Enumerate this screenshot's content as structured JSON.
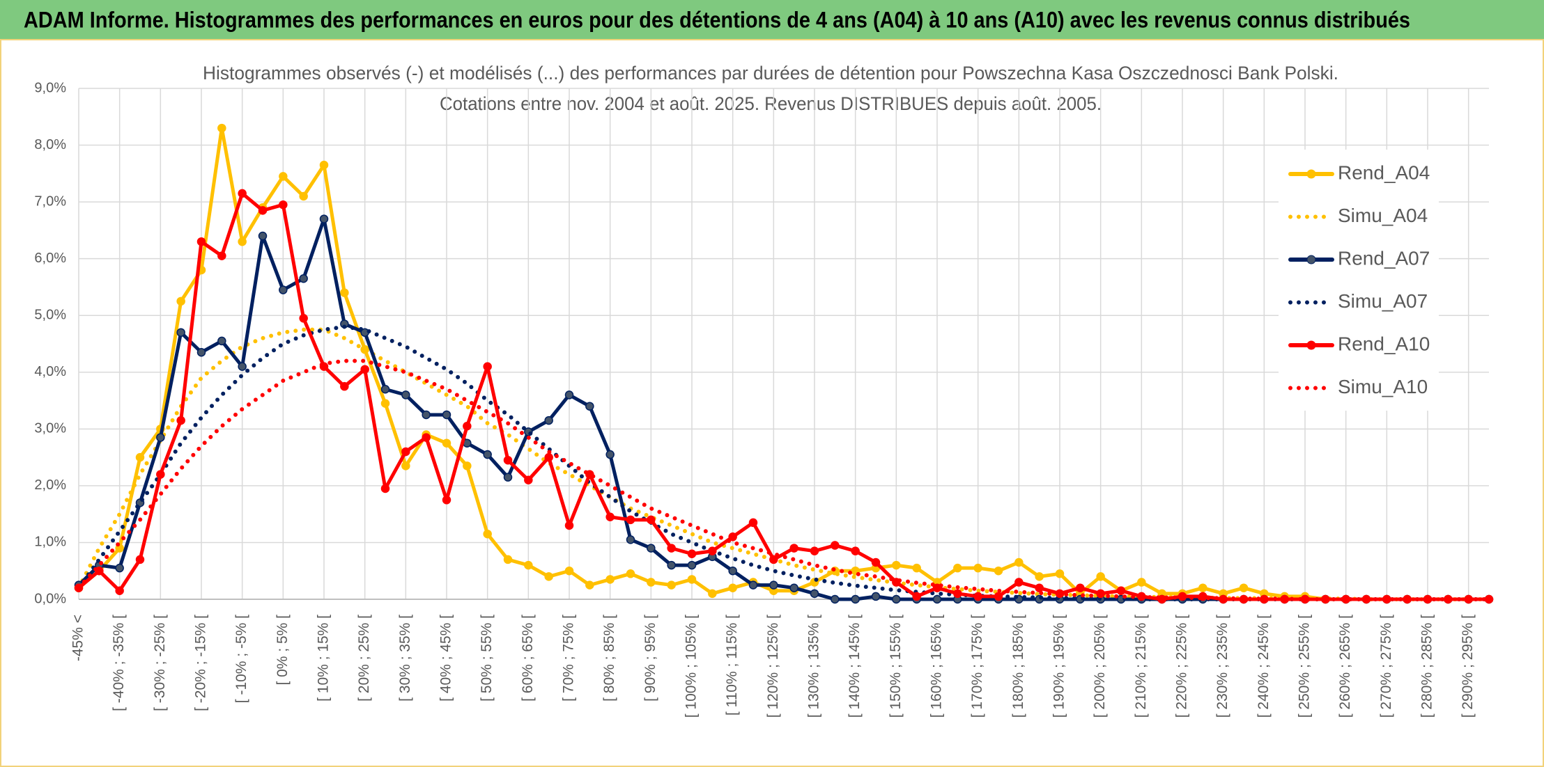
{
  "chart_data": {
    "type": "line",
    "title": "ADAM Informe. Histogrammes des performances en euros pour des détentions de 4 ans (A04) à 10 ans (A10) avec les revenus connus distribués",
    "subtitle": [
      "Histogrammes observés (-) et modélisés (...) des performances par durées de détention pour Powszechna Kasa Oszczednosci Bank Polski.",
      "Cotations entre nov. 2004 et août. 2025. Revenus DISTRIBUES depuis août. 2005."
    ],
    "categories": [
      "-45% <",
      null,
      "[ -40% ; -35% [",
      null,
      "[ -30% ; -25% [",
      null,
      "[ -20% ; -15% [",
      null,
      "[ -10% ; -5% [",
      null,
      "[ 0% ; 5% [",
      null,
      "[ 10% ; 15% [",
      null,
      "[ 20% ; 25% [",
      null,
      "[ 30% ; 35% [",
      null,
      "[ 40% ; 45% [",
      null,
      "[ 50% ; 55% [",
      null,
      "[ 60% ; 65% [",
      null,
      "[ 70% ; 75% [",
      null,
      "[ 80% ; 85% [",
      null,
      "[ 90% ; 95% [",
      null,
      "[ 100% ; 105% [",
      null,
      "[ 110% ; 115% [",
      null,
      "[ 120% ; 125% [",
      null,
      "[ 130% ; 135% [",
      null,
      "[ 140% ; 145% [",
      null,
      "[ 150% ; 155% [",
      null,
      "[ 160% ; 165% [",
      null,
      "[ 170% ; 175% [",
      null,
      "[ 180% ; 185% [",
      null,
      "[ 190% ; 195% [",
      null,
      "[ 200% ; 205% [",
      null,
      "[ 210% ; 215% [",
      null,
      "[ 220% ; 225% [",
      null,
      "[ 230% ; 235% [",
      null,
      "[ 240% ; 245% [",
      null,
      "[ 250% ; 255% [",
      null,
      "[ 260% ; 265% [",
      null,
      "[ 270% ; 275% [",
      null,
      "[ 280% ; 285% [",
      null,
      "[ 290% ; 295% [",
      null
    ],
    "series": [
      {
        "name": "Rend_A04",
        "color": "#FFC000",
        "style": "solid",
        "values": [
          0.2,
          0.5,
          0.9,
          2.5,
          3.0,
          5.25,
          5.8,
          8.3,
          6.3,
          6.9,
          7.45,
          7.1,
          7.65,
          5.4,
          4.4,
          3.45,
          2.35,
          2.9,
          2.75,
          2.35,
          1.15,
          0.7,
          0.6,
          0.4,
          0.5,
          0.25,
          0.35,
          0.45,
          0.3,
          0.25,
          0.35,
          0.1,
          0.2,
          0.3,
          0.15,
          0.15,
          0.3,
          0.5,
          0.5,
          0.55,
          0.6,
          0.55,
          0.3,
          0.55,
          0.55,
          0.5,
          0.65,
          0.4,
          0.45,
          0.1,
          0.4,
          0.15,
          0.3,
          0.1,
          0.1,
          0.2,
          0.1,
          0.2,
          0.1,
          0.05,
          0.05,
          0,
          0,
          0,
          0,
          0,
          0,
          0,
          0,
          0
        ]
      },
      {
        "name": "Simu_A04",
        "color": "#FFC000",
        "style": "dotted",
        "values": [
          0.2,
          0.9,
          1.5,
          2.2,
          2.8,
          3.4,
          3.9,
          4.2,
          4.45,
          4.6,
          4.7,
          4.75,
          4.75,
          4.6,
          4.4,
          4.2,
          4.0,
          3.8,
          3.6,
          3.4,
          3.1,
          2.9,
          2.65,
          2.4,
          2.2,
          2.0,
          1.8,
          1.6,
          1.45,
          1.3,
          1.15,
          1.0,
          0.9,
          0.8,
          0.7,
          0.6,
          0.52,
          0.45,
          0.39,
          0.34,
          0.29,
          0.25,
          0.21,
          0.18,
          0.15,
          0.13,
          0.11,
          0.09,
          0.08,
          0.07,
          0.06,
          0.05,
          0.04,
          0.04,
          0.03,
          0.03,
          0.02,
          0.02,
          0.02,
          0.01,
          0.01,
          0.01,
          0.01,
          0,
          0,
          0,
          0,
          0,
          0,
          0
        ]
      },
      {
        "name": "Rend_A07",
        "color": "#002060",
        "style": "solid",
        "values": [
          0.25,
          0.6,
          0.55,
          1.7,
          2.85,
          4.7,
          4.35,
          4.55,
          4.1,
          6.4,
          5.45,
          5.65,
          6.7,
          4.85,
          4.7,
          3.7,
          3.6,
          3.25,
          3.25,
          2.75,
          2.55,
          2.15,
          2.95,
          3.15,
          3.6,
          3.4,
          2.55,
          1.05,
          0.9,
          0.6,
          0.6,
          0.75,
          0.5,
          0.25,
          0.25,
          0.2,
          0.1,
          0,
          0,
          0.05,
          0,
          0,
          0,
          0,
          0,
          0,
          0,
          0,
          0,
          0,
          0,
          0,
          0,
          0,
          0,
          0,
          0,
          0,
          0,
          0,
          0,
          0,
          0,
          0,
          0,
          0,
          0,
          0,
          0,
          0
        ]
      },
      {
        "name": "Simu_A07",
        "color": "#002060",
        "style": "dotted",
        "values": [
          0.2,
          0.7,
          1.2,
          1.7,
          2.2,
          2.75,
          3.2,
          3.6,
          3.95,
          4.25,
          4.5,
          4.65,
          4.75,
          4.8,
          4.75,
          4.6,
          4.45,
          4.25,
          4.05,
          3.8,
          3.5,
          3.25,
          2.95,
          2.65,
          2.35,
          2.05,
          1.8,
          1.55,
          1.35,
          1.15,
          1.0,
          0.85,
          0.72,
          0.6,
          0.5,
          0.42,
          0.35,
          0.29,
          0.24,
          0.2,
          0.16,
          0.13,
          0.1,
          0.08,
          0.06,
          0.05,
          0.04,
          0.03,
          0.02,
          0.02,
          0.01,
          0.01,
          0,
          0,
          0,
          0,
          0,
          0,
          0,
          0,
          0,
          0,
          0,
          0,
          0,
          0,
          0,
          0,
          0,
          0
        ]
      },
      {
        "name": "Rend_A10",
        "color": "#FF0000",
        "style": "solid",
        "values": [
          0.2,
          0.5,
          0.15,
          0.7,
          2.2,
          3.15,
          6.3,
          6.05,
          7.15,
          6.85,
          6.95,
          4.95,
          4.1,
          3.75,
          4.05,
          1.95,
          2.6,
          2.85,
          1.75,
          3.05,
          4.1,
          2.45,
          2.1,
          2.5,
          1.3,
          2.2,
          1.45,
          1.4,
          1.4,
          0.9,
          0.8,
          0.85,
          1.1,
          1.35,
          0.7,
          0.9,
          0.85,
          0.95,
          0.85,
          0.65,
          0.3,
          0.05,
          0.2,
          0.1,
          0.05,
          0.05,
          0.3,
          0.2,
          0.1,
          0.2,
          0.1,
          0.15,
          0.05,
          0,
          0.05,
          0.05,
          0,
          0,
          0,
          0,
          0,
          0,
          0,
          0,
          0,
          0,
          0,
          0,
          0,
          0
        ]
      },
      {
        "name": "Simu_A10",
        "color": "#FF0000",
        "style": "dotted",
        "values": [
          0.2,
          0.6,
          1.0,
          1.4,
          1.85,
          2.3,
          2.7,
          3.05,
          3.35,
          3.6,
          3.85,
          4.0,
          4.15,
          4.2,
          4.2,
          4.1,
          4.0,
          3.85,
          3.7,
          3.5,
          3.3,
          3.1,
          2.85,
          2.6,
          2.4,
          2.2,
          2.0,
          1.8,
          1.6,
          1.45,
          1.3,
          1.15,
          1.0,
          0.9,
          0.8,
          0.7,
          0.6,
          0.52,
          0.45,
          0.4,
          0.34,
          0.29,
          0.25,
          0.21,
          0.18,
          0.15,
          0.13,
          0.11,
          0.09,
          0.07,
          0.06,
          0.05,
          0.04,
          0.03,
          0.03,
          0.02,
          0.02,
          0.01,
          0.01,
          0.01,
          0,
          0,
          0,
          0,
          0,
          0,
          0,
          0,
          0,
          0
        ]
      }
    ],
    "ylim": [
      0,
      9
    ],
    "yticks": [
      {
        "value": 0,
        "label": "0,0%"
      },
      {
        "value": 1,
        "label": "1,0%"
      },
      {
        "value": 2,
        "label": "2,0%"
      },
      {
        "value": 3,
        "label": "3,0%"
      },
      {
        "value": 4,
        "label": "4,0%"
      },
      {
        "value": 5,
        "label": "5,0%"
      },
      {
        "value": 6,
        "label": "6,0%"
      },
      {
        "value": 7,
        "label": "7,0%"
      },
      {
        "value": 8,
        "label": "8,0%"
      },
      {
        "value": 9,
        "label": "9,0%"
      }
    ],
    "grid": true,
    "legend": "right"
  }
}
